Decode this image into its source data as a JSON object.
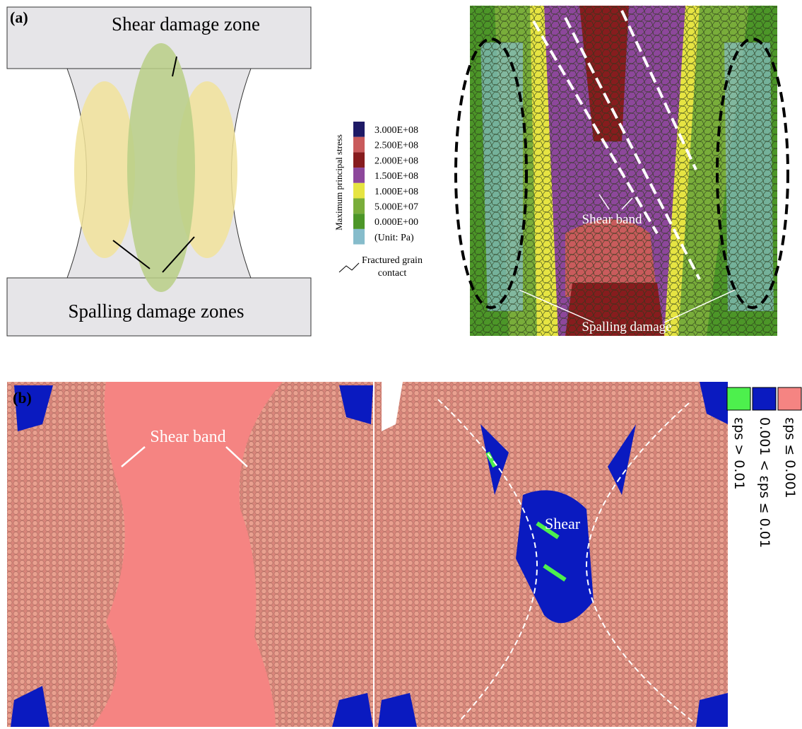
{
  "panel_a": {
    "label": "(a)",
    "schematic": {
      "shear_label": "Shear damage zone",
      "spalling_label": "Spalling damage zones"
    },
    "legend": {
      "title": "Maximum principal stress",
      "entries": [
        {
          "label": "3.000E+08",
          "color": "#1e1a66"
        },
        {
          "label": "2.500E+08",
          "color": "#c95b5c"
        },
        {
          "label": "2.000E+08",
          "color": "#871c1e"
        },
        {
          "label": "1.500E+08",
          "color": "#8d479b"
        },
        {
          "label": "1.000E+08",
          "color": "#e6e442"
        },
        {
          "label": "5.000E+07",
          "color": "#79ad3a"
        },
        {
          "label": "0.000E+00",
          "color": "#4c9628"
        },
        {
          "label": "(Unit: Pa)",
          "color": "#86bccb"
        }
      ],
      "fracture_label": "Fractured grain contact"
    },
    "simulation": {
      "shear_band_label": "Shear band",
      "spalling_label": "Spalling damage"
    }
  },
  "panel_b": {
    "label": "(b)",
    "shear_band_label": "Shear band",
    "shear_label": "Shear",
    "legend": [
      {
        "label": "εps ≤ 0.001",
        "color": "#f58482"
      },
      {
        "label": "0.001 < εps ≤ 0.01",
        "color": "#0a1ac0"
      },
      {
        "label": "εps > 0.01",
        "color": "#4df04d"
      }
    ]
  }
}
